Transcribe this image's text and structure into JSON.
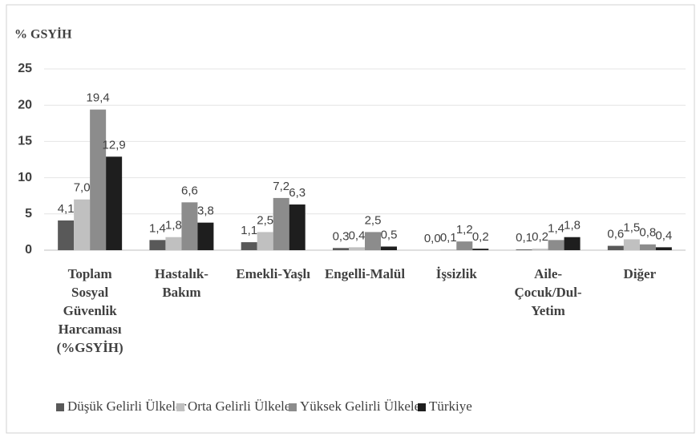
{
  "chart_data": {
    "type": "bar",
    "y_axis_label": "% GSYİH",
    "categories": [
      "Toplam Sosyal Güvenlik Harcaması (%GSYİH)",
      "Hastalık-Bakım",
      "Emekli-Yaşlı",
      "Engelli-Malül",
      "İşsizlik",
      "Aile-Çocuk/Dul-Yetim",
      "Diğer"
    ],
    "series": [
      {
        "name": "Düşük Gelirli Ülkeler",
        "color": "#595959",
        "values": [
          4.1,
          1.4,
          1.1,
          0.3,
          0.0,
          0.1,
          0.6
        ],
        "value_labels": [
          "4,1",
          "1,4",
          "1,1",
          "0,3",
          "0,0",
          "0,1",
          "0,6"
        ]
      },
      {
        "name": "Orta Gelirli Ülkeler",
        "color": "#c0c0c0",
        "values": [
          7.0,
          1.8,
          2.5,
          0.4,
          0.1,
          0.2,
          1.5
        ],
        "value_labels": [
          "7,0",
          "1,8",
          "2,5",
          "0,4",
          "0,1",
          "0,2",
          "1,5"
        ]
      },
      {
        "name": "Yüksek Gelirli Ülkeler",
        "color": "#8c8c8c",
        "values": [
          19.4,
          6.6,
          7.2,
          2.5,
          1.2,
          1.4,
          0.8
        ],
        "value_labels": [
          "19,4",
          "6,6",
          "7,2",
          "2,5",
          "1,2",
          "1,4",
          "0,8"
        ]
      },
      {
        "name": "Türkiye",
        "color": "#1e1e1e",
        "values": [
          12.9,
          3.8,
          6.3,
          0.5,
          0.2,
          1.8,
          0.4
        ],
        "value_labels": [
          "12,9",
          "3,8",
          "6,3",
          "0,5",
          "0,2",
          "1,8",
          "0,4"
        ]
      }
    ],
    "ylim": [
      0,
      25
    ],
    "yticks": [
      0,
      5,
      10,
      15,
      20,
      25
    ],
    "grid": true,
    "legend": "bottom"
  }
}
